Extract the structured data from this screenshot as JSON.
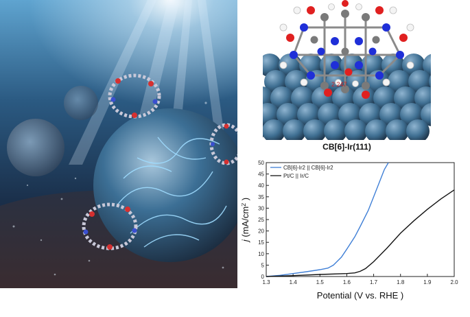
{
  "figure": {
    "caption": "CB[6]-Ir(111)",
    "bond_label": "2.247"
  },
  "chart_data": {
    "type": "line",
    "xlabel": "Potential (V vs. RHE )",
    "ylabel_italic": "j",
    "ylabel_rest": " (mA/cm",
    "ylabel_sup": "2",
    "ylabel_end": " )",
    "xlim": [
      1.3,
      2.0
    ],
    "ylim": [
      0,
      50
    ],
    "xticks": [
      "1.3",
      "1.4",
      "1.5",
      "1.6",
      "1.7",
      "1.8",
      "1.9",
      "2.0"
    ],
    "yticks": [
      "0",
      "5",
      "10",
      "15",
      "20",
      "25",
      "30",
      "35",
      "40",
      "45",
      "50"
    ],
    "grid": false,
    "legend_position": "top-left",
    "series": [
      {
        "name": "CB[6]-Ir2 || CB[6]-Ir2",
        "color": "#3f7fd6",
        "x": [
          1.3,
          1.35,
          1.4,
          1.45,
          1.5,
          1.53,
          1.55,
          1.58,
          1.6,
          1.63,
          1.65,
          1.68,
          1.7,
          1.72,
          1.74,
          1.755
        ],
        "y": [
          0.0,
          0.5,
          1.3,
          2.1,
          3.0,
          3.7,
          5.0,
          8.5,
          12.0,
          17.5,
          22.0,
          29.0,
          35.0,
          41.0,
          47.0,
          50.0
        ]
      },
      {
        "name": "Pt/C || Ir/C",
        "color": "#111111",
        "x": [
          1.3,
          1.4,
          1.5,
          1.6,
          1.63,
          1.65,
          1.67,
          1.7,
          1.75,
          1.8,
          1.85,
          1.9,
          1.95,
          2.0
        ],
        "y": [
          0.0,
          0.4,
          0.9,
          1.3,
          1.6,
          2.3,
          3.5,
          6.5,
          12.5,
          19.0,
          24.5,
          29.5,
          34.0,
          38.0
        ]
      }
    ]
  }
}
